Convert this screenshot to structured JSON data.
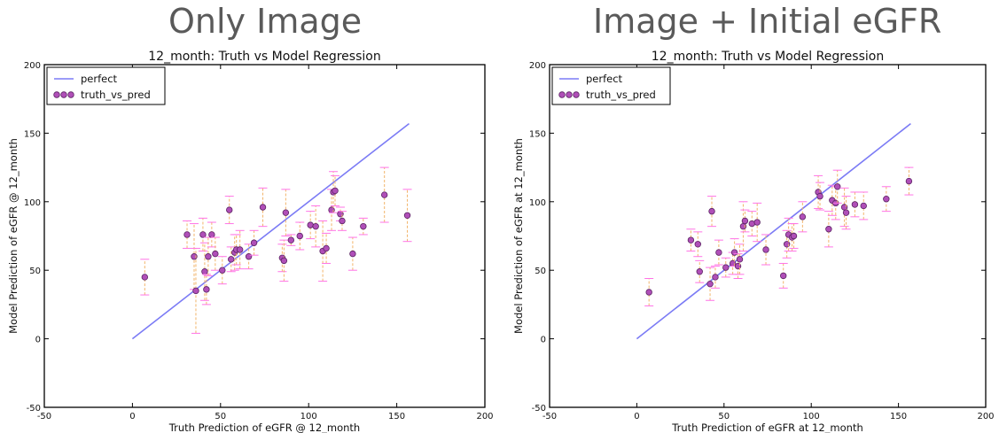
{
  "headings": [
    "Only Image",
    "Image + Initial eGFR"
  ],
  "colors": {
    "perfect_line": "#7b7bf5",
    "point_fill": "#b04fb8",
    "point_edge": "#5c2464",
    "error_bar": "#f2b46a",
    "error_cap": "#ff73e6"
  },
  "chart_data": [
    {
      "type": "scatter",
      "title": "12_month: Truth vs Model Regression",
      "xlabel": "Truth Prediction of eGFR @ 12_month",
      "ylabel": "Model Prediction of eGFR @ 12_month",
      "xlim": [
        -50,
        200
      ],
      "ylim": [
        -50,
        200
      ],
      "xticks": [
        "-50",
        "0",
        "50",
        "100",
        "150",
        "200"
      ],
      "yticks": [
        "-50",
        "0",
        "50",
        "100",
        "150",
        "200"
      ],
      "grid": false,
      "legend_position": "top-left",
      "legend": [
        "perfect",
        "truth_vs_pred"
      ],
      "series": [
        {
          "name": "perfect",
          "kind": "line",
          "x": [
            0,
            157
          ],
          "y": [
            0,
            157
          ]
        },
        {
          "name": "truth_vs_pred",
          "kind": "errorbar-scatter",
          "x": [
            7,
            31,
            35,
            36,
            40,
            41,
            42,
            43,
            45,
            47,
            51,
            55,
            56,
            58,
            59,
            61,
            66,
            69,
            74,
            85,
            86,
            87,
            90,
            95,
            101,
            104,
            108,
            110,
            113,
            114,
            115,
            118,
            119,
            125,
            131,
            143,
            156
          ],
          "y": [
            45,
            76,
            60,
            35,
            76,
            49,
            36,
            60,
            76,
            62,
            50,
            94,
            58,
            63,
            65,
            65,
            60,
            70,
            96,
            59,
            57,
            92,
            72,
            75,
            83,
            82,
            64,
            66,
            94,
            107,
            108,
            91,
            86,
            62,
            82,
            105,
            90
          ],
          "err": [
            13,
            10,
            24,
            31,
            12,
            21,
            11,
            14,
            9,
            12,
            10,
            10,
            9,
            13,
            11,
            14,
            9,
            9,
            14,
            10,
            15,
            17,
            4,
            10,
            10,
            15,
            22,
            11,
            15,
            15,
            11,
            5,
            7,
            12,
            6,
            20,
            19
          ]
        }
      ]
    },
    {
      "type": "scatter",
      "title": "12_month: Truth vs Model Regression",
      "xlabel": "Truth Prediction of eGFR at 12_month",
      "ylabel": "Model Prediction of eGFR at 12_month",
      "xlim": [
        -50,
        200
      ],
      "ylim": [
        -50,
        200
      ],
      "xticks": [
        "-50",
        "0",
        "50",
        "100",
        "150",
        "200"
      ],
      "yticks": [
        "-50",
        "0",
        "50",
        "100",
        "150",
        "200"
      ],
      "grid": false,
      "legend_position": "top-left",
      "legend": [
        "perfect",
        "truth_vs_pred"
      ],
      "series": [
        {
          "name": "perfect",
          "kind": "line",
          "x": [
            0,
            157
          ],
          "y": [
            0,
            157
          ]
        },
        {
          "name": "truth_vs_pred",
          "kind": "errorbar-scatter",
          "x": [
            7,
            31,
            35,
            36,
            42,
            43,
            45,
            47,
            51,
            55,
            56,
            58,
            59,
            61,
            62,
            66,
            69,
            74,
            84,
            86,
            87,
            89,
            90,
            95,
            104,
            105,
            110,
            112,
            114,
            115,
            119,
            120,
            125,
            130,
            143,
            156
          ],
          "y": [
            34,
            72,
            69,
            49,
            40,
            93,
            45,
            63,
            52,
            55,
            63,
            53,
            58,
            82,
            86,
            84,
            85,
            65,
            46,
            69,
            76,
            74,
            75,
            89,
            107,
            104,
            80,
            101,
            99,
            111,
            96,
            92,
            98,
            97,
            102,
            115
          ],
          "err": [
            10,
            8,
            9,
            8,
            12,
            11,
            8,
            9,
            7,
            8,
            10,
            9,
            11,
            18,
            8,
            9,
            14,
            11,
            9,
            10,
            12,
            10,
            9,
            11,
            12,
            10,
            13,
            11,
            12,
            12,
            14,
            12,
            9,
            10,
            9,
            10
          ]
        }
      ]
    }
  ]
}
